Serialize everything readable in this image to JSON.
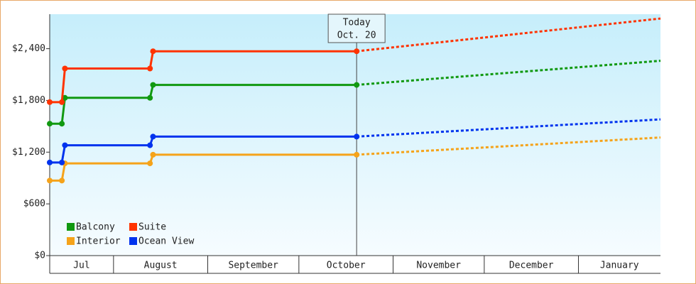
{
  "chart_data": {
    "type": "line",
    "x": [
      10,
      14,
      15,
      43,
      44,
      111
    ],
    "forecast_x": [
      111,
      211
    ],
    "xlim": [
      10,
      211
    ],
    "xticks": [
      {
        "value": 0,
        "label": "Jul"
      },
      {
        "value": 31,
        "label": "August"
      },
      {
        "value": 62,
        "label": "September"
      },
      {
        "value": 92,
        "label": "October"
      },
      {
        "value": 123,
        "label": "November"
      },
      {
        "value": 153,
        "label": "December"
      },
      {
        "value": 184,
        "label": "January"
      }
    ],
    "ylim": [
      0,
      2800
    ],
    "yticks": [
      {
        "value": 0,
        "label": "$0"
      },
      {
        "value": 600,
        "label": "$600"
      },
      {
        "value": 1200,
        "label": "$1,200"
      },
      {
        "value": 1800,
        "label": "$1,800"
      },
      {
        "value": 2400,
        "label": "$2,400"
      }
    ],
    "annotation": {
      "x": 111,
      "lines": [
        "Today",
        "Oct. 20"
      ]
    },
    "legend": "lower left",
    "series": [
      {
        "name": "Balcony",
        "color": "#119911",
        "values": [
          1530,
          1530,
          1830,
          1830,
          1980,
          1980
        ],
        "forecast": [
          1980,
          2260
        ]
      },
      {
        "name": "Suite",
        "color": "#ff3300",
        "values": [
          1780,
          1780,
          2170,
          2170,
          2370,
          2370
        ],
        "forecast": [
          2370,
          2750
        ]
      },
      {
        "name": "Interior",
        "color": "#f5a31a",
        "values": [
          870,
          870,
          1070,
          1070,
          1170,
          1170
        ],
        "forecast": [
          1170,
          1370
        ]
      },
      {
        "name": "Ocean View",
        "color": "#0033ee",
        "values": [
          1080,
          1080,
          1280,
          1280,
          1380,
          1380
        ],
        "forecast": [
          1380,
          1580
        ]
      }
    ]
  }
}
